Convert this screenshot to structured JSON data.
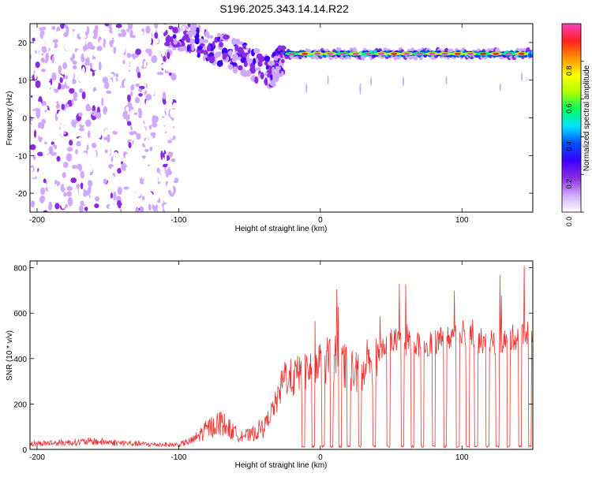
{
  "title": "S196.2025.343.14.14.R22",
  "colors": {
    "snr_line": "#ee3333",
    "colormap": [
      "#ffffff",
      "#cfa8ff",
      "#8a2be2",
      "#3a00ff",
      "#0050ff",
      "#00e0ff",
      "#00ff60",
      "#b0ff00",
      "#ffff00",
      "#ff9000",
      "#ff2020",
      "#ff40c0"
    ]
  },
  "chart_data": [
    {
      "type": "heatmap",
      "title": "S196.2025.343.14.14.R22",
      "xlabel": "Height of straight line (km)",
      "ylabel": "Frequency (Hz)",
      "xlim": [
        -205,
        150
      ],
      "ylim": [
        -25,
        25
      ],
      "xticks": [
        "-200",
        "-100",
        "0",
        "100"
      ],
      "yticks": [
        "20",
        "10",
        "0",
        "-10",
        "-20"
      ],
      "colorbar": {
        "label": "Normalized spectral amplitude",
        "range": [
          0,
          1
        ],
        "ticks": [
          "0.0",
          "0.2",
          "0.4",
          "0.6",
          "0.8"
        ]
      },
      "features": {
        "noise_region_x": [
          -205,
          -110
        ],
        "signal_band_freq_hz": 17,
        "signal_start_x": -25,
        "transition_ridge": [
          [
            -110,
            23
          ],
          [
            -90,
            21
          ],
          [
            -70,
            18
          ],
          [
            -50,
            15
          ],
          [
            -35,
            12
          ],
          [
            -25,
            17
          ]
        ]
      }
    },
    {
      "type": "line",
      "xlabel": "Height of straight line (km)",
      "ylabel": "SNR (10 * v/v)",
      "xlim": [
        -205,
        150
      ],
      "ylim": [
        0,
        830
      ],
      "xticks": [
        "-200",
        "-100",
        "0",
        "100"
      ],
      "yticks": [
        "0",
        "200",
        "400",
        "600",
        "800"
      ],
      "series": [
        {
          "x": [
            -205,
            -180,
            -160,
            -140,
            -120,
            -100,
            -90,
            -80,
            -70,
            -60,
            -50,
            -40,
            -30,
            -25,
            -20,
            -10,
            0,
            10,
            20,
            30,
            40,
            45,
            50,
            60,
            70,
            80,
            90,
            100,
            110,
            120,
            130,
            140,
            150
          ],
          "values": [
            25,
            30,
            35,
            28,
            22,
            20,
            40,
            90,
            120,
            70,
            60,
            100,
            220,
            330,
            310,
            350,
            380,
            400,
            360,
            320,
            420,
            470,
            480,
            470,
            460,
            470,
            490,
            530,
            480,
            470,
            480,
            500,
            520
          ]
        }
      ],
      "dropouts_x": [
        -12,
        -5,
        2,
        8,
        14,
        20,
        28,
        38,
        48,
        58,
        65,
        72,
        80,
        88,
        97,
        104,
        110,
        118,
        125,
        133,
        141,
        148
      ]
    }
  ]
}
